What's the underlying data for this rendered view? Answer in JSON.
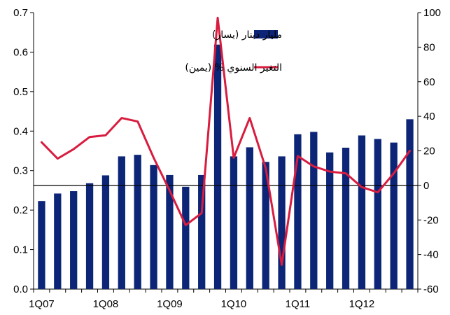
{
  "chart_data": {
    "type": "bar+line",
    "title": "",
    "categories": [
      "1Q07",
      "2Q07",
      "3Q07",
      "4Q07",
      "1Q08",
      "2Q08",
      "3Q08",
      "4Q08",
      "1Q09",
      "2Q09",
      "3Q09",
      "4Q09",
      "1Q10",
      "2Q10",
      "3Q10",
      "4Q10",
      "1Q11",
      "2Q11",
      "3Q11",
      "4Q11",
      "1Q12",
      "2Q12",
      "3Q12",
      "4Q12"
    ],
    "x_tick_labels": [
      "1Q07",
      "1Q08",
      "1Q09",
      "1Q10",
      "1Q11",
      "1Q12"
    ],
    "series": [
      {
        "name": "مليار دينار (يسار)",
        "type": "bar",
        "axis": "left",
        "color": "#0d2577",
        "values": [
          0.223,
          0.242,
          0.248,
          0.268,
          0.288,
          0.336,
          0.34,
          0.314,
          0.289,
          0.259,
          0.289,
          0.619,
          0.336,
          0.359,
          0.322,
          0.336,
          0.392,
          0.398,
          0.346,
          0.358,
          0.389,
          0.38,
          0.371,
          0.43
        ]
      },
      {
        "name": "التغير السنوي % (يمين)",
        "type": "line",
        "axis": "right",
        "color": "#d81c3f",
        "values": [
          25,
          15.5,
          21,
          28,
          29,
          39,
          37,
          16,
          -3,
          -23,
          -16,
          97,
          16,
          39,
          10,
          -46,
          17,
          11,
          8,
          7,
          -1,
          -4,
          7,
          20
        ]
      }
    ],
    "y_left": {
      "min": 0,
      "max": 0.7,
      "ticks": [
        "0.0",
        "0.1",
        "0.2",
        "0.3",
        "0.4",
        "0.5",
        "0.6",
        "0.7"
      ]
    },
    "y_right": {
      "min": -60,
      "max": 100,
      "ticks": [
        "-60",
        "-40",
        "-20",
        "0",
        "20",
        "40",
        "60",
        "80",
        "100"
      ]
    },
    "zero_line_right": 0,
    "grid": false,
    "legend_position": "top-right"
  }
}
